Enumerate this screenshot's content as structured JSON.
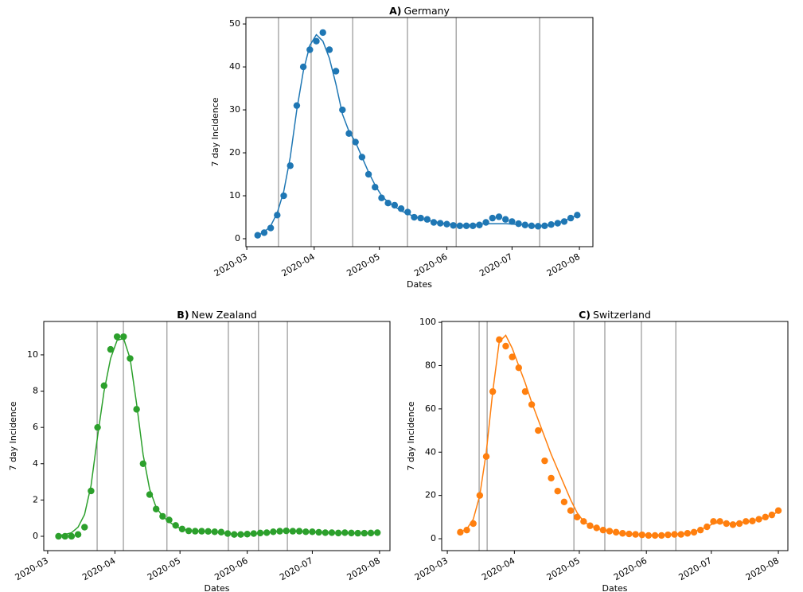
{
  "chart_data": [
    {
      "type": "line",
      "panel": "A)",
      "title": "Germany",
      "xlabel": "Dates",
      "ylabel": "7 day Incidence",
      "xlim": [
        60.6,
        220.2
      ],
      "ylim": [
        -1.85,
        51.5
      ],
      "xticks": [
        {
          "value": 61,
          "label": "2020-03"
        },
        {
          "value": 92,
          "label": "2020-04"
        },
        {
          "value": 122,
          "label": "2020-05"
        },
        {
          "value": 153,
          "label": "2020-06"
        },
        {
          "value": 183,
          "label": "2020-07"
        },
        {
          "value": 214,
          "label": "2020-08"
        }
      ],
      "yticks": [
        0,
        10,
        20,
        30,
        40,
        50
      ],
      "vlines": [
        75.6,
        90.6,
        109.7,
        134.9,
        157.3,
        195.7
      ],
      "x": [
        66,
        69,
        72,
        75,
        78,
        81,
        84,
        87,
        90,
        93,
        96,
        99,
        102,
        105,
        108,
        111,
        114,
        117,
        120,
        123,
        126,
        129,
        132,
        135,
        138,
        141,
        144,
        147,
        150,
        153,
        156,
        159,
        162,
        165,
        168,
        171,
        174,
        177,
        180,
        183,
        186,
        189,
        192,
        195,
        198,
        201,
        204,
        207,
        210,
        213
      ],
      "series": [
        {
          "color": "#1f77b4",
          "mode": "markers",
          "values": [
            0.8,
            1.4,
            2.5,
            5.5,
            10,
            17,
            31,
            40,
            44,
            46,
            48,
            44,
            39,
            30,
            24.5,
            22.5,
            19,
            15,
            12,
            9.5,
            8.3,
            7.8,
            7,
            6.2,
            5,
            4.8,
            4.5,
            3.8,
            3.6,
            3.4,
            3.1,
            3,
            3,
            3,
            3.2,
            3.8,
            4.8,
            5.1,
            4.5,
            4,
            3.5,
            3.2,
            3,
            2.9,
            3,
            3.3,
            3.6,
            4,
            4.8,
            5.5
          ]
        },
        {
          "color": "#1f77b4",
          "mode": "line",
          "values": [
            0.8,
            1.5,
            3,
            6,
            11,
            19,
            30,
            39,
            45,
            47.5,
            46,
            42,
            36,
            29,
            25,
            22.5,
            19,
            15.5,
            12.5,
            10,
            8.5,
            7.5,
            6.5,
            5.8,
            5.2,
            4.7,
            4.3,
            4,
            3.7,
            3.5,
            3.3,
            3.2,
            3.2,
            3.3,
            3.4,
            3.5,
            3.5,
            3.5,
            3.5,
            3.4,
            3.3,
            3.2,
            3.1,
            3,
            3.1,
            3.3,
            3.7,
            4.2,
            4.8,
            5.5
          ]
        }
      ]
    },
    {
      "type": "line",
      "panel": "B)",
      "title": "New Zealand",
      "xlabel": "Dates",
      "ylabel": "7 day Incidence",
      "xlim": [
        59.2,
        218.8
      ],
      "ylim": [
        -0.79,
        11.84
      ],
      "xticks": [
        {
          "value": 61,
          "label": "2020-03"
        },
        {
          "value": 92,
          "label": "2020-04"
        },
        {
          "value": 122,
          "label": "2020-05"
        },
        {
          "value": 153,
          "label": "2020-06"
        },
        {
          "value": 183,
          "label": "2020-07"
        },
        {
          "value": 214,
          "label": "2020-08"
        }
      ],
      "yticks": [
        0,
        2,
        4,
        6,
        8,
        10
      ],
      "vlines": [
        83.8,
        95.9,
        116.0,
        144.3,
        158.2,
        171.5
      ],
      "x": [
        66,
        69,
        72,
        75,
        78,
        81,
        84,
        87,
        90,
        93,
        96,
        99,
        102,
        105,
        108,
        111,
        114,
        117,
        120,
        123,
        126,
        129,
        132,
        135,
        138,
        141,
        144,
        147,
        150,
        153,
        156,
        159,
        162,
        165,
        168,
        171,
        174,
        177,
        180,
        183,
        186,
        189,
        192,
        195,
        198,
        201,
        204,
        207,
        210,
        213
      ],
      "series": [
        {
          "color": "#2ca02c",
          "mode": "markers",
          "values": [
            0,
            0,
            0,
            0.1,
            0.5,
            2.5,
            6,
            8.3,
            10.3,
            11,
            11,
            9.8,
            7,
            4,
            2.3,
            1.5,
            1.1,
            0.9,
            0.6,
            0.4,
            0.3,
            0.28,
            0.28,
            0.27,
            0.25,
            0.23,
            0.15,
            0.1,
            0.1,
            0.12,
            0.15,
            0.18,
            0.2,
            0.25,
            0.28,
            0.3,
            0.28,
            0.28,
            0.25,
            0.25,
            0.22,
            0.2,
            0.2,
            0.18,
            0.2,
            0.18,
            0.17,
            0.17,
            0.18,
            0.2
          ]
        },
        {
          "color": "#2ca02c",
          "mode": "line",
          "values": [
            0.05,
            0.1,
            0.2,
            0.5,
            1.2,
            2.8,
            5.5,
            8,
            9.8,
            10.8,
            10.9,
            9.8,
            7.3,
            4.5,
            2.6,
            1.6,
            1.1,
            0.8,
            0.55,
            0.4,
            0.32,
            0.28,
            0.27,
            0.26,
            0.24,
            0.2,
            0.15,
            0.12,
            0.12,
            0.13,
            0.15,
            0.18,
            0.2,
            0.24,
            0.27,
            0.28,
            0.27,
            0.26,
            0.25,
            0.24,
            0.22,
            0.21,
            0.2,
            0.19,
            0.18,
            0.18,
            0.18,
            0.18,
            0.19,
            0.2
          ]
        }
      ]
    },
    {
      "type": "line",
      "panel": "C)",
      "title": "Switzerland",
      "xlabel": "Dates",
      "ylabel": "7 day Incidence",
      "xlim": [
        58.4,
        218.4
      ],
      "ylim": [
        -5.5,
        100.4
      ],
      "xticks": [
        {
          "value": 61,
          "label": "2020-03"
        },
        {
          "value": 92,
          "label": "2020-04"
        },
        {
          "value": 122,
          "label": "2020-05"
        },
        {
          "value": 153,
          "label": "2020-06"
        },
        {
          "value": 183,
          "label": "2020-07"
        },
        {
          "value": 214,
          "label": "2020-08"
        }
      ],
      "yticks": [
        0,
        20,
        40,
        60,
        80,
        100
      ],
      "vlines": [
        75.7,
        79.4,
        119.5,
        133.8,
        150.7,
        166.6
      ],
      "x": [
        67,
        70,
        73,
        76,
        79,
        82,
        85,
        88,
        91,
        94,
        97,
        100,
        103,
        106,
        109,
        112,
        115,
        118,
        121,
        124,
        127,
        130,
        133,
        136,
        139,
        142,
        145,
        148,
        151,
        154,
        157,
        160,
        163,
        166,
        169,
        172,
        175,
        178,
        181,
        184,
        187,
        190,
        193,
        196,
        199,
        202,
        205,
        208,
        211,
        214
      ],
      "series": [
        {
          "color": "#ff7f0e",
          "mode": "markers",
          "values": [
            3,
            4,
            7,
            20,
            38,
            68,
            92,
            89,
            84,
            79,
            68,
            62,
            50,
            36,
            28,
            22,
            17,
            13,
            10,
            8,
            6,
            5,
            4,
            3.5,
            3,
            2.5,
            2.2,
            2,
            1.8,
            1.5,
            1.5,
            1.5,
            1.8,
            2,
            2,
            2.5,
            3,
            4,
            5.5,
            8,
            8,
            7,
            6.5,
            7,
            8,
            8.2,
            9,
            10,
            11,
            13
          ]
        },
        {
          "color": "#ff7f0e",
          "mode": "line",
          "values": [
            3,
            4.5,
            9,
            20,
            40,
            68,
            91,
            94,
            88,
            80,
            72,
            63,
            55,
            47,
            39,
            32,
            25,
            18,
            12,
            8,
            6,
            4.8,
            4,
            3.3,
            2.8,
            2.4,
            2.1,
            1.9,
            1.7,
            1.6,
            1.6,
            1.7,
            1.8,
            2,
            2.3,
            2.7,
            3.3,
            4.2,
            5.5,
            7,
            7.5,
            7.2,
            7,
            7.3,
            7.8,
            8.3,
            9,
            10,
            11,
            12.5
          ]
        }
      ]
    }
  ]
}
